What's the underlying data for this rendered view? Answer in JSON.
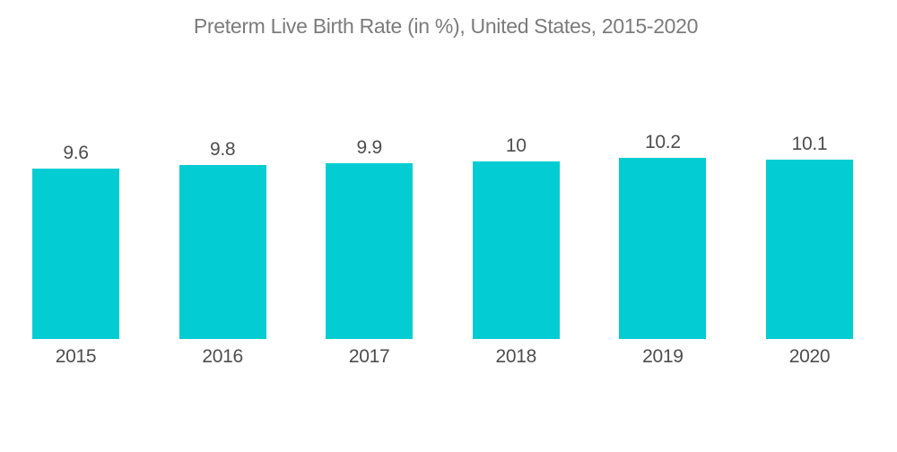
{
  "chart_data": {
    "type": "bar",
    "title": "Preterm Live Birth Rate (in %), United States, 2015-2020",
    "categories": [
      "2015",
      "2016",
      "2017",
      "2018",
      "2019",
      "2020"
    ],
    "values": [
      9.6,
      9.8,
      9.9,
      10,
      10.2,
      10.1
    ],
    "value_labels": [
      "9.6",
      "9.8",
      "9.9",
      "10",
      "10.2",
      "10.1"
    ],
    "xlabel": "",
    "ylabel": "",
    "ylim": [
      0,
      10.2
    ],
    "grid": false,
    "legend": "none",
    "axes_visible": false,
    "bar_color": "#03cdd3",
    "title_color": "#7b7b7b",
    "label_color": "#4d4d4d",
    "background_color": "#ffffff"
  }
}
